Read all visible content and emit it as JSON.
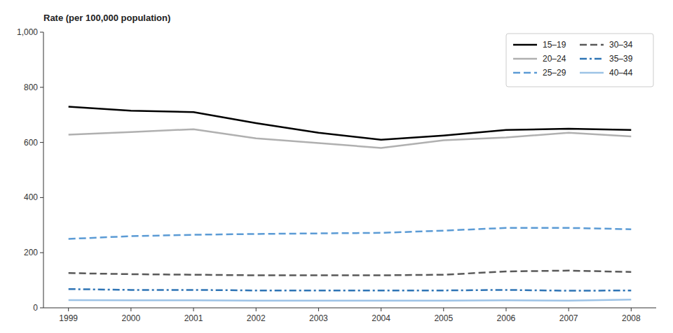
{
  "chart_data": {
    "type": "line",
    "ylabel": "Rate (per 100,000 population)",
    "x": [
      1999,
      2000,
      2001,
      2002,
      2003,
      2004,
      2005,
      2006,
      2007,
      2008
    ],
    "series": [
      {
        "name": "15–19",
        "color": "#000000",
        "line_style": "solid",
        "values": [
          730,
          715,
          710,
          670,
          635,
          610,
          625,
          645,
          650,
          645
        ]
      },
      {
        "name": "20–24",
        "color": "#b0b0b0",
        "line_style": "solid",
        "values": [
          628,
          638,
          648,
          615,
          598,
          580,
          608,
          618,
          635,
          622
        ]
      },
      {
        "name": "25–29",
        "color": "#5b9bd5",
        "line_style": "dashed",
        "values": [
          250,
          260,
          265,
          268,
          270,
          272,
          280,
          290,
          290,
          285
        ]
      },
      {
        "name": "30–34",
        "color": "#595959",
        "line_style": "dashed",
        "values": [
          126,
          122,
          120,
          118,
          118,
          118,
          120,
          132,
          135,
          130
        ]
      },
      {
        "name": "35–39",
        "color": "#2e74b5",
        "line_style": "dashdot",
        "values": [
          68,
          65,
          65,
          63,
          63,
          63,
          63,
          65,
          62,
          63
        ]
      },
      {
        "name": "40–44",
        "color": "#9dc3e6",
        "line_style": "solid",
        "values": [
          28,
          27,
          27,
          26,
          26,
          26,
          26,
          27,
          26,
          30
        ]
      }
    ],
    "xlim": [
      1998.6,
      2008.4
    ],
    "xticks": [
      1999,
      2000,
      2001,
      2002,
      2003,
      2004,
      2005,
      2006,
      2007,
      2008
    ],
    "ylim": [
      0,
      1000
    ],
    "yticks": [
      0,
      200,
      400,
      600,
      800,
      {
        "value": 1000,
        "label": "1,000"
      }
    ],
    "grid": false,
    "legend": "upper right"
  }
}
